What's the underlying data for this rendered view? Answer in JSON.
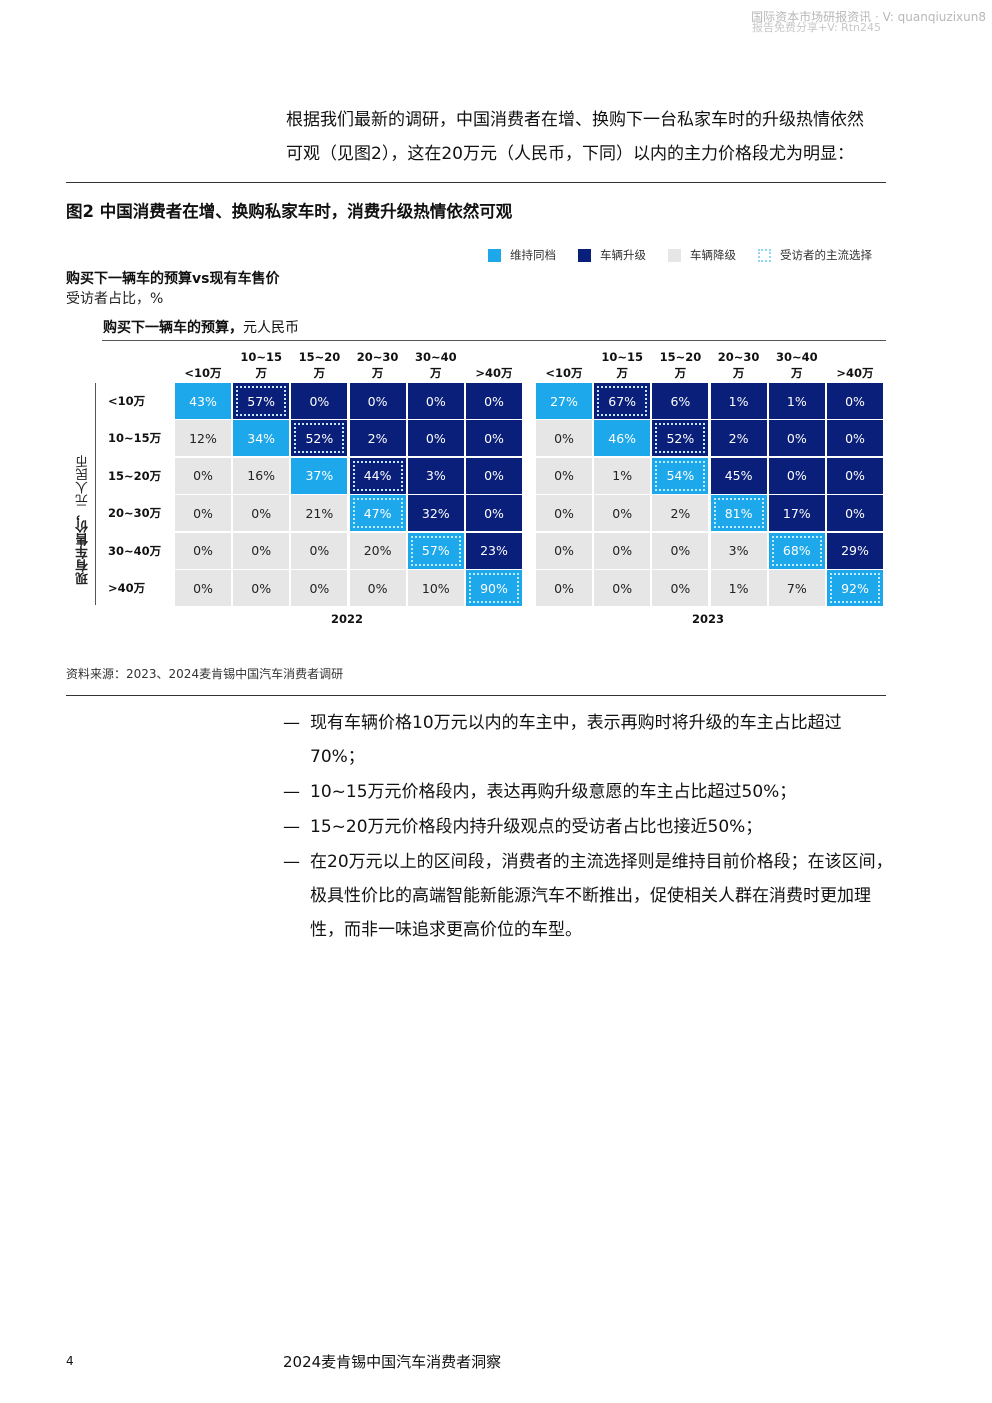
{
  "watermark": {
    "line1": "国际资本市场研报资讯 · V: quanqiuzixun8",
    "line2": "报告免费分享+V: Rtn245"
  },
  "intro": {
    "line1": "根据我们最新的调研，中国消费者在增、换购下一台私家车时的升级热情依然",
    "line2": "可观（见图2），这在20万元（人民币，下同）以内的主力价格段尤为明显："
  },
  "figure": {
    "title": "图2 中国消费者在增、换购私家车时，消费升级热情依然可观",
    "legend": [
      {
        "label": "维持同档",
        "color": "#1ea8ec"
      },
      {
        "label": "车辆升级",
        "color": "#0a1f7a"
      },
      {
        "label": "车辆降级",
        "color": "#e6e6e6"
      },
      {
        "label": "受访者的主流选择",
        "color": "#8fd6f5"
      }
    ],
    "subtitle": "购买下一辆车的预算vs现有车售价",
    "unit": "受访者占比，%",
    "budget_label_bold": "购买下一辆车的预算，",
    "budget_label_unit": "元人民币",
    "ylabel_bold": "现有车售价，",
    "ylabel_unit": "元人民币",
    "source": "资料来源：2023、2024麦肯锡中国汽车消费者调研"
  },
  "chart_data": {
    "type": "heatmap",
    "columns": [
      {
        "line1": "<10万",
        "line2": ""
      },
      {
        "line1": "10~15",
        "line2": "万"
      },
      {
        "line1": "15~20",
        "line2": "万"
      },
      {
        "line1": "20~30",
        "line2": "万"
      },
      {
        "line1": "30~40",
        "line2": "万"
      },
      {
        "line1": ">40万",
        "line2": ""
      }
    ],
    "rows": [
      "<10万",
      "10~15万",
      "15~20万",
      "20~30万",
      "30~40万",
      ">40万"
    ],
    "panels": [
      {
        "label": "2022",
        "values": [
          [
            "43%",
            "57%",
            "0%",
            "0%",
            "0%",
            "0%"
          ],
          [
            "12%",
            "34%",
            "52%",
            "2%",
            "0%",
            "0%"
          ],
          [
            "0%",
            "16%",
            "37%",
            "44%",
            "3%",
            "0%"
          ],
          [
            "0%",
            "0%",
            "21%",
            "47%",
            "32%",
            "0%"
          ],
          [
            "0%",
            "0%",
            "0%",
            "20%",
            "57%",
            "23%"
          ],
          [
            "0%",
            "0%",
            "0%",
            "0%",
            "10%",
            "90%"
          ]
        ],
        "mainstream": [
          [
            0,
            1
          ],
          [
            1,
            2
          ],
          [
            2,
            3
          ],
          [
            3,
            3
          ],
          [
            4,
            4
          ],
          [
            5,
            5
          ]
        ]
      },
      {
        "label": "2023",
        "values": [
          [
            "27%",
            "67%",
            "6%",
            "1%",
            "1%",
            "0%"
          ],
          [
            "0%",
            "46%",
            "52%",
            "2%",
            "0%",
            "0%"
          ],
          [
            "0%",
            "1%",
            "54%",
            "45%",
            "0%",
            "0%"
          ],
          [
            "0%",
            "0%",
            "2%",
            "81%",
            "17%",
            "0%"
          ],
          [
            "0%",
            "0%",
            "0%",
            "3%",
            "68%",
            "29%"
          ],
          [
            "0%",
            "0%",
            "0%",
            "1%",
            "7%",
            "92%"
          ]
        ],
        "mainstream": [
          [
            0,
            1
          ],
          [
            1,
            2
          ],
          [
            2,
            2
          ],
          [
            3,
            3
          ],
          [
            4,
            4
          ],
          [
            5,
            5
          ]
        ]
      }
    ],
    "colors": {
      "same": "#1ea8ec",
      "upgrade": "#0a1f7a",
      "downgrade": "#e6e6e6"
    }
  },
  "bullets": [
    {
      "dash": "—",
      "text": "现有车辆价格10万元以内的车主中，表示再购时将升级的车主占比超过70%；"
    },
    {
      "dash": "—",
      "text": "10~15万元价格段内，表达再购升级意愿的车主占比超过50%；"
    },
    {
      "dash": "—",
      "text": "15~20万元价格段内持升级观点的受访者占比也接近50%；"
    },
    {
      "dash": "—",
      "text": "在20万元以上的区间段，消费者的主流选择则是维持目前价格段；在该区间，极具性价比的高端智能新能源汽车不断推出，促使相关人群在消费时更加理性，而非一味追求更高价位的车型。"
    }
  ],
  "footer": {
    "page": "4",
    "title": "2024麦肯锡中国汽车消费者洞察"
  }
}
